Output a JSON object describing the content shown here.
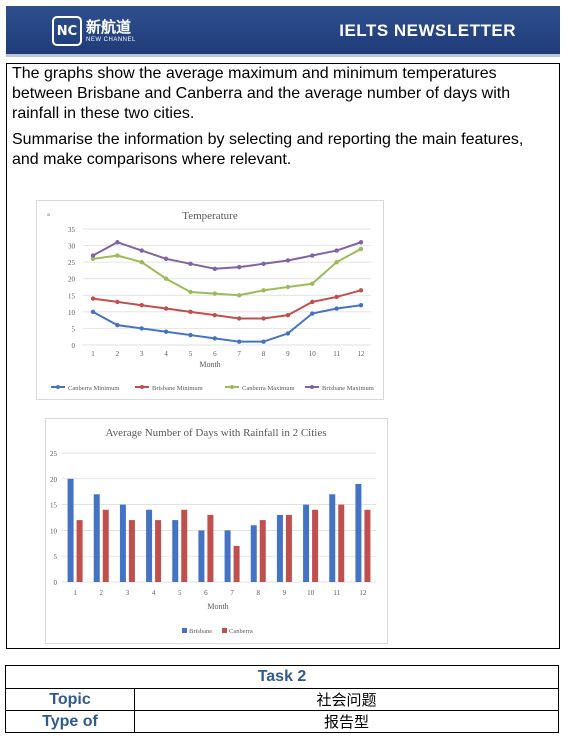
{
  "header": {
    "logo_cn": "新航道",
    "logo_en": "NEW CHANNEL",
    "logo_mark": "NC",
    "title": "IELTS  NEWSLETTER",
    "bg_color": "#1f3c78"
  },
  "prompt": {
    "p1": "The graphs show the average maximum and minimum temperatures between Brisbane and Canberra and the average number of days with rainfall in these two cities.",
    "p2": "Summarise the information by selecting and reporting the main features, and make comparisons where relevant."
  },
  "chart_data": [
    {
      "type": "line",
      "title": "Temperature",
      "ylabel": "°",
      "xlabel": "Month",
      "x": [
        1,
        2,
        3,
        4,
        5,
        6,
        7,
        8,
        9,
        10,
        11,
        12
      ],
      "ylim": [
        0,
        35
      ],
      "yticks": [
        0,
        5,
        10,
        15,
        20,
        25,
        30,
        35
      ],
      "grid": true,
      "legend": "bottom",
      "series": [
        {
          "name": "Canberra Minimum",
          "color": "#4472c4",
          "values": [
            10,
            6,
            5,
            4,
            3,
            2,
            1,
            1,
            3.5,
            9.5,
            11,
            12
          ]
        },
        {
          "name": "Brisbane Minimum",
          "color": "#c0504d",
          "values": [
            14,
            13,
            12,
            11,
            10,
            9,
            8,
            8,
            9,
            13,
            14.5,
            16.5
          ]
        },
        {
          "name": "Canberra Maximum",
          "color": "#9bbb59",
          "values": [
            26,
            27,
            25,
            20,
            16,
            15.5,
            15,
            16.5,
            17.5,
            18.5,
            25,
            29
          ]
        },
        {
          "name": "Brisbane Maximum",
          "color": "#8064a2",
          "values": [
            27,
            31,
            28.5,
            26,
            24.5,
            23,
            23.5,
            24.5,
            25.5,
            27,
            28.5,
            31
          ]
        }
      ]
    },
    {
      "type": "bar",
      "title": "Average Number of Days with Rainfall in 2 Cities",
      "xlabel": "Month",
      "categories": [
        "1",
        "2",
        "3",
        "4",
        "5",
        "6",
        "7",
        "8",
        "9",
        "10",
        "11",
        "12"
      ],
      "ylim": [
        0,
        25
      ],
      "yticks": [
        0,
        5,
        10,
        15,
        20,
        25
      ],
      "grid": true,
      "legend": "bottom",
      "series": [
        {
          "name": "Brisbane",
          "color": "#4472c4",
          "values": [
            20,
            17,
            15,
            14,
            12,
            10,
            10,
            11,
            13,
            15,
            17,
            19
          ]
        },
        {
          "name": "Canberra",
          "color": "#c0504d",
          "values": [
            12,
            14,
            12,
            12,
            14,
            13,
            7,
            12,
            13,
            14,
            15,
            14
          ]
        }
      ]
    }
  ],
  "task": {
    "heading": "Task 2",
    "rows": [
      {
        "label": "Topic",
        "value": "社会问题"
      },
      {
        "label": "Type of",
        "value": "报告型"
      }
    ]
  }
}
